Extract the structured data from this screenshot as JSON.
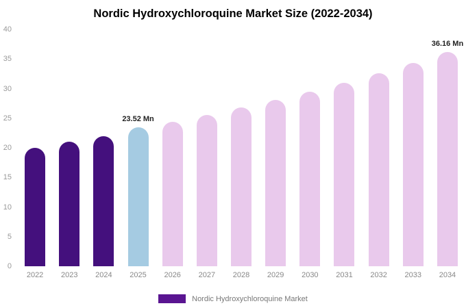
{
  "chart_data": {
    "type": "bar",
    "title": "Nordic Hydroxychloroquine Market Size (2022-2034)",
    "categories": [
      "2022",
      "2023",
      "2024",
      "2025",
      "2026",
      "2027",
      "2028",
      "2029",
      "2030",
      "2031",
      "2032",
      "2033",
      "2034"
    ],
    "values": [
      20,
      21,
      22,
      23.52,
      24.4,
      25.5,
      26.8,
      28.1,
      29.5,
      31,
      32.6,
      34.3,
      36.16
    ],
    "unit": "Mn",
    "xlabel": "",
    "ylabel": "",
    "ylim": [
      0,
      40
    ],
    "ytick_step": 5,
    "grid": false,
    "legend_position": "bottom",
    "annotations": [
      {
        "category": "2025",
        "text": "23.52 Mn"
      },
      {
        "category": "2034",
        "text": "36.16 Mn"
      }
    ],
    "segments": [
      "historical",
      "historical",
      "historical",
      "highlight",
      "forecast",
      "forecast",
      "forecast",
      "forecast",
      "forecast",
      "forecast",
      "forecast",
      "forecast",
      "forecast"
    ],
    "colors": {
      "historical": "#44107d",
      "highlight": "#a5cbe2",
      "forecast": "#e9c9ec",
      "legend": "#5a1591"
    },
    "legend": [
      {
        "label": "Nordic Hydroxychloroquine Market",
        "color": "#5a1591"
      }
    ]
  }
}
